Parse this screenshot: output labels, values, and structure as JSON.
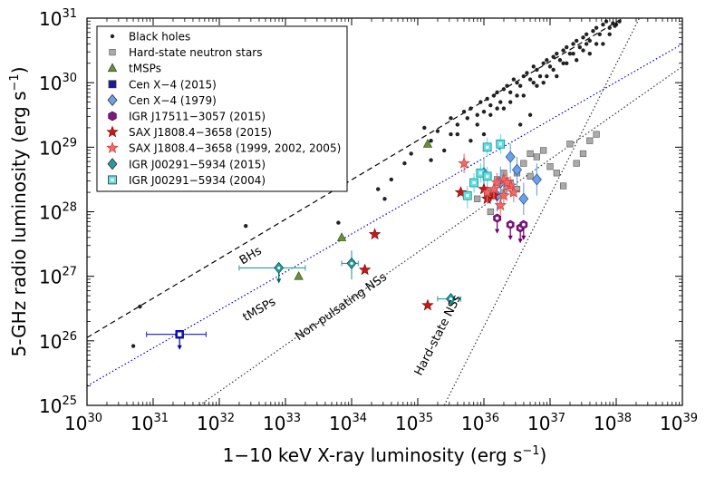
{
  "chart_data": {
    "type": "scatter",
    "x_scale": "log",
    "y_scale": "log",
    "xlim_exp": [
      30,
      39
    ],
    "ylim_exp": [
      25,
      31
    ],
    "x_ticks": [
      {
        "base": "10",
        "exp": "30"
      },
      {
        "base": "10",
        "exp": "31"
      },
      {
        "base": "10",
        "exp": "32"
      },
      {
        "base": "10",
        "exp": "33"
      },
      {
        "base": "10",
        "exp": "34"
      },
      {
        "base": "10",
        "exp": "35"
      },
      {
        "base": "10",
        "exp": "36"
      },
      {
        "base": "10",
        "exp": "37"
      },
      {
        "base": "10",
        "exp": "38"
      },
      {
        "base": "10",
        "exp": "39"
      }
    ],
    "y_ticks": [
      {
        "base": "10",
        "exp": "25"
      },
      {
        "base": "10",
        "exp": "26"
      },
      {
        "base": "10",
        "exp": "27"
      },
      {
        "base": "10",
        "exp": "28"
      },
      {
        "base": "10",
        "exp": "29"
      },
      {
        "base": "10",
        "exp": "30"
      },
      {
        "base": "10",
        "exp": "31"
      }
    ],
    "xlabel": {
      "main": "1−10 keV X-ray luminosity (erg s",
      "sup": "−1",
      "close": ")"
    },
    "ylabel": {
      "main": "5-GHz radio luminosity (erg s",
      "sup": "−1",
      "close": ")"
    },
    "lines": [
      {
        "name": "BHs",
        "style": "dashed",
        "color": "#000000",
        "p1": [
          30,
          26.05
        ],
        "p2": [
          38.1,
          31
        ],
        "label": "BHs",
        "label_at": [
          32.35,
          27.18
        ]
      },
      {
        "name": "tMSPs",
        "style": "dotted",
        "color": "#0000cc",
        "p1": [
          30,
          25.3
        ],
        "p2": [
          39,
          30.6
        ],
        "label": "tMSPs",
        "label_at": [
          32.4,
          26.3
        ]
      },
      {
        "name": "Non-pulsating NSs",
        "style": "dotted",
        "color": "#333333",
        "p1": [
          31.7,
          25
        ],
        "p2": [
          39,
          30.25
        ],
        "label": "Non-pulsating NSs",
        "label_at": [
          33.2,
          26.0
        ]
      },
      {
        "name": "Hard-state NSs",
        "style": "dotted",
        "color": "#333333",
        "p1": [
          35.4,
          25
        ],
        "p2": [
          38.35,
          31
        ],
        "label": "Hard-state NSs",
        "label_at": [
          35.05,
          25.45
        ]
      }
    ],
    "series": [
      {
        "name": "Black holes",
        "marker": "dot",
        "color": "#222222",
        "points": [
          [
            30.7,
            25.92
          ],
          [
            30.8,
            26.53
          ],
          [
            32.4,
            27.78
          ],
          [
            33.8,
            27.83
          ],
          [
            34.4,
            28.35
          ],
          [
            34.6,
            28.5
          ],
          [
            34.8,
            28.75
          ],
          [
            34.5,
            28.2
          ],
          [
            34.9,
            28.9
          ],
          [
            35.2,
            29.1
          ],
          [
            35.1,
            29.3
          ],
          [
            35.3,
            29.25
          ],
          [
            35.5,
            29.2
          ],
          [
            35.5,
            29.45
          ],
          [
            35.6,
            29.35
          ],
          [
            35.7,
            29.55
          ],
          [
            35.75,
            29.45
          ],
          [
            35.8,
            29.6
          ],
          [
            35.9,
            29.5
          ],
          [
            35.95,
            29.7
          ],
          [
            36,
            29.55
          ],
          [
            36.05,
            29.75
          ],
          [
            36.1,
            29.65
          ],
          [
            36.15,
            29.8
          ],
          [
            36.2,
            29.85
          ],
          [
            36.25,
            29.7
          ],
          [
            36.3,
            29.9
          ],
          [
            36.35,
            29.95
          ],
          [
            36.4,
            29.85
          ],
          [
            36.45,
            30.05
          ],
          [
            36.5,
            30
          ],
          [
            36.55,
            29.95
          ],
          [
            36.6,
            30.1
          ],
          [
            36.65,
            30.15
          ],
          [
            36.7,
            30.05
          ],
          [
            36.75,
            30.25
          ],
          [
            36.8,
            30.2
          ],
          [
            36.85,
            30.1
          ],
          [
            36.9,
            30.3
          ],
          [
            36.95,
            30.35
          ],
          [
            37,
            30.25
          ],
          [
            37.05,
            30.4
          ],
          [
            37.1,
            30.45
          ],
          [
            37.15,
            30.35
          ],
          [
            37.2,
            30.5
          ],
          [
            37.25,
            30.55
          ],
          [
            37.3,
            30.45
          ],
          [
            37.35,
            30.6
          ],
          [
            37.4,
            30.65
          ],
          [
            37.45,
            30.55
          ],
          [
            37.5,
            30.7
          ],
          [
            37.55,
            30.75
          ],
          [
            37.6,
            30.65
          ],
          [
            37.65,
            30.8
          ],
          [
            37.7,
            30.85
          ],
          [
            37.75,
            30.75
          ],
          [
            37.8,
            30.9
          ],
          [
            37.85,
            30.95
          ],
          [
            37.9,
            30.85
          ],
          [
            37.95,
            30.92
          ],
          [
            37.98,
            30.88
          ],
          [
            36.3,
            29.6
          ],
          [
            36.5,
            29.8
          ],
          [
            36.8,
            29.95
          ],
          [
            37.1,
            30.1
          ],
          [
            35.9,
            29.35
          ],
          [
            35.6,
            29.2
          ],
          [
            36.1,
            29.5
          ],
          [
            36.0,
            29.2
          ],
          [
            36.7,
            29.5
          ],
          [
            36.9,
            30.0
          ],
          [
            37.2,
            30.3
          ],
          [
            37.4,
            30.35
          ],
          [
            37.5,
            30.5
          ],
          [
            37.6,
            30.45
          ],
          [
            37.8,
            30.6
          ],
          [
            37.9,
            30.75
          ],
          [
            36.6,
            29.8
          ],
          [
            36.4,
            29.7
          ],
          [
            36.2,
            29.6
          ],
          [
            35.8,
            29.1
          ],
          [
            35.4,
            28.95
          ],
          [
            35.2,
            28.8
          ],
          [
            36.55,
            29.35
          ],
          [
            36.75,
            30.0
          ],
          [
            37.05,
            30.2
          ],
          [
            37.25,
            30.3
          ],
          [
            37.7,
            30.6
          ],
          [
            38.0,
            30.9
          ],
          [
            38.05,
            30.95
          ],
          [
            37.55,
            30.6
          ],
          [
            37.35,
            30.45
          ],
          [
            36.95,
            30.1
          ]
        ]
      },
      {
        "name": "Hard-state neutron stars",
        "marker": "square",
        "color": "#aaaaaa",
        "points": [
          [
            35.9,
            28.2
          ],
          [
            36.1,
            28.3
          ],
          [
            36.2,
            28.5
          ],
          [
            36.3,
            28.3
          ],
          [
            36.4,
            28.45
          ],
          [
            36.5,
            28.6
          ],
          [
            36.6,
            28.75
          ],
          [
            36.7,
            28.9
          ],
          [
            36.8,
            28.85
          ],
          [
            36.9,
            28.95
          ],
          [
            37.0,
            28.7
          ],
          [
            37.1,
            28.6
          ],
          [
            37.2,
            28.4
          ],
          [
            37.3,
            29.05
          ],
          [
            37.5,
            28.9
          ],
          [
            37.6,
            29.1
          ],
          [
            37.7,
            29.2
          ],
          [
            37.4,
            28.75
          ],
          [
            36.7,
            28.55
          ],
          [
            36.5,
            28.35
          ],
          [
            36.3,
            28.6
          ],
          [
            36.1,
            28.0
          ],
          [
            36.05,
            28.25
          ],
          [
            36.35,
            28.4
          ]
        ]
      },
      {
        "name": "tMSPs",
        "marker": "triangle",
        "color": "#6b8e3a",
        "edge": "#3a5a1a",
        "points": [
          [
            33.2,
            27.0
          ],
          [
            33.85,
            27.6
          ],
          [
            35.15,
            29.05
          ]
        ]
      },
      {
        "name": "Cen X−4 (2015)",
        "marker": "square-open",
        "color": "#1a1aa0",
        "edge": "#0000aa",
        "points": [
          [
            31.4,
            26.1
          ]
        ],
        "errors": [
          {
            "xl": 30.9,
            "xh": 31.8
          }
        ],
        "upper": [
          true
        ]
      },
      {
        "name": "Cen X−4 (1979)",
        "marker": "diamond",
        "color": "#6ea0e6",
        "edge": "#2a5aa0",
        "points": [
          [
            36.0,
            28.6
          ],
          [
            36.25,
            28.45
          ],
          [
            36.4,
            28.85
          ],
          [
            36.5,
            28.65
          ],
          [
            36.8,
            28.5
          ],
          [
            36.6,
            28.2
          ],
          [
            36.2,
            28.25
          ]
        ],
        "errors": [
          {
            "yl": 28.35,
            "yh": 28.85
          },
          {
            "yl": 28.2,
            "yh": 28.7
          },
          {
            "yl": 28.6,
            "yh": 29.05
          },
          {
            "yl": 28.4,
            "yh": 28.85
          },
          {
            "yl": 28.25,
            "yh": 28.75
          },
          {
            "yl": 27.95,
            "yh": 28.45
          },
          {
            "yl": 28.0,
            "yh": 28.5
          }
        ]
      },
      {
        "name": "IGR J17511−3057 (2015)",
        "marker": "hexagon-open",
        "color": "#7b1a7b",
        "edge": "#6a006a",
        "points": [
          [
            36.2,
            27.9
          ],
          [
            36.4,
            27.8
          ],
          [
            36.55,
            27.75
          ],
          [
            36.6,
            27.8
          ]
        ],
        "upper": [
          true,
          true,
          true,
          true
        ]
      },
      {
        "name": "SAX J1808.4−3658 (2015)",
        "marker": "star",
        "color": "#c41a1a",
        "edge": "#7a0000",
        "points": [
          [
            34.2,
            27.1
          ],
          [
            34.35,
            27.65
          ],
          [
            35.15,
            26.55
          ],
          [
            35.65,
            28.3
          ],
          [
            36.0,
            28.35
          ],
          [
            36.05,
            28.2
          ],
          [
            36.15,
            28.25
          ]
        ]
      },
      {
        "name": "SAX J1808.4−3658 (1999, 2002, 2005)",
        "marker": "star",
        "color": "#f06a6a",
        "edge": "#c03030",
        "points": [
          [
            35.7,
            28.75
          ],
          [
            36.05,
            28.3
          ],
          [
            36.2,
            28.45
          ],
          [
            36.3,
            28.25
          ],
          [
            36.4,
            28.4
          ],
          [
            36.45,
            28.3
          ],
          [
            36.3,
            28.5
          ],
          [
            36.15,
            28.35
          ],
          [
            36.35,
            28.45
          ],
          [
            36.25,
            28.1
          ]
        ],
        "errors": [
          {
            "yl": 28.6,
            "yh": 28.9
          },
          {
            "yl": 28.15,
            "yh": 28.45
          },
          {
            "yl": 28.3,
            "yh": 28.6
          },
          {
            "yl": 28.1,
            "yh": 28.4
          },
          {
            "yl": 28.25,
            "yh": 28.55
          },
          {
            "yl": 28.15,
            "yh": 28.45
          },
          {
            "yl": 28.35,
            "yh": 28.65
          },
          {
            "yl": 28.2,
            "yh": 28.5
          },
          {
            "yl": 28.3,
            "yh": 28.6
          },
          {
            "yl": 27.95,
            "yh": 28.25
          }
        ]
      },
      {
        "name": "IGR J00291−5934 (2015)",
        "marker": "diamond-dot",
        "color": "#2a9a9a",
        "edge": "#006060",
        "points": [
          [
            32.9,
            27.13
          ],
          [
            34.0,
            27.2
          ],
          [
            35.5,
            26.65
          ]
        ],
        "errors": [
          {
            "xl": 32.3,
            "xh": 33.3,
            "yl": 27.0,
            "yh": 27.2
          },
          {
            "xl": 33.85,
            "xh": 34.1,
            "yl": 26.95,
            "yh": 27.4
          },
          {
            "xl": 35.3,
            "xh": 35.65,
            "yl": 26.65,
            "yh": 26.65
          }
        ],
        "upper": [
          true,
          false,
          false
        ]
      },
      {
        "name": "IGR J00291−5934 (2004)",
        "marker": "square-sq",
        "color": "#5ee0e6",
        "edge": "#1a8a8a",
        "points": [
          [
            35.75,
            28.25
          ],
          [
            35.85,
            28.45
          ],
          [
            35.95,
            28.6
          ],
          [
            36.05,
            29.0
          ],
          [
            36.25,
            29.05
          ],
          [
            36.05,
            28.55
          ]
        ],
        "errors": [
          {
            "yl": 28.05,
            "yh": 28.4
          },
          {
            "yl": 28.3,
            "yh": 28.6
          },
          {
            "yl": 28.45,
            "yh": 28.75
          },
          {
            "yl": 28.85,
            "yh": 29.15
          },
          {
            "yl": 28.9,
            "yh": 29.2
          },
          {
            "yl": 28.4,
            "yh": 28.7
          }
        ]
      }
    ],
    "legend": {
      "position": "top-left",
      "entries": [
        {
          "label": "Black holes",
          "marker": "dot",
          "color": "#222222"
        },
        {
          "label": "Hard-state neutron stars",
          "marker": "square",
          "color": "#aaaaaa"
        },
        {
          "label": "tMSPs",
          "marker": "triangle",
          "color": "#6b8e3a"
        },
        {
          "label": "Cen X−4 (2015)",
          "marker": "square-solid",
          "color": "#1a1aa0"
        },
        {
          "label": "Cen X−4 (1979)",
          "marker": "diamond",
          "color": "#6ea0e6"
        },
        {
          "label": "IGR J17511−3057 (2015)",
          "marker": "hexagon",
          "color": "#7b1a7b"
        },
        {
          "label": "SAX J1808.4−3658 (2015)",
          "marker": "star",
          "color": "#c41a1a"
        },
        {
          "label": "SAX J1808.4−3658 (1999, 2002, 2005)",
          "marker": "star",
          "color": "#f06a6a"
        },
        {
          "label": "IGR J00291−5934 (2015)",
          "marker": "diamond",
          "color": "#2a9a9a"
        },
        {
          "label": "IGR J00291−5934 (2004)",
          "marker": "square-sq",
          "color": "#5ee0e6"
        }
      ]
    }
  }
}
